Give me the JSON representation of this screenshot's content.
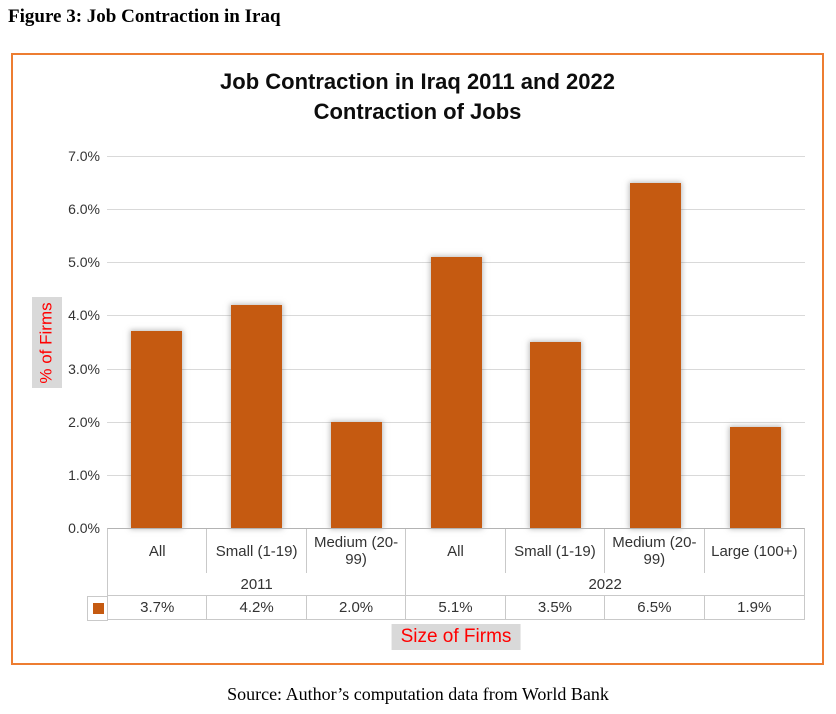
{
  "page": {
    "figure_caption": "Figure 3: Job Contraction in Iraq",
    "source_note": "Source: Author’s computation data from World Bank"
  },
  "colors": {
    "chart_border": "#ED7D31",
    "bar_fill": "#C55A11",
    "gridline": "#D9D9D9",
    "table_line": "#C9C9C9",
    "axis_title_text": "#FF0000",
    "axis_title_bg": "#D9D9D9"
  },
  "chart_data": {
    "type": "bar",
    "title": "Job Contraction in Iraq 2011 and 2022",
    "subtitle": "Contraction of Jobs",
    "xlabel": "Size of Firms",
    "ylabel": "% of Firms",
    "ylim": [
      0,
      7
    ],
    "yticks": [
      "0.0%",
      "1.0%",
      "2.0%",
      "3.0%",
      "4.0%",
      "5.0%",
      "6.0%",
      "7.0%"
    ],
    "grid": true,
    "legend_position": "data-table-left",
    "groups": [
      {
        "label": "2011",
        "categories": [
          "All",
          "Small (1-19)",
          "Medium (20-99)"
        ],
        "values": [
          3.7,
          4.2,
          2.0
        ]
      },
      {
        "label": "2022",
        "categories": [
          "All",
          "Small (1-19)",
          "Medium (20-99)",
          "Large (100+)"
        ],
        "values": [
          5.1,
          3.5,
          6.5,
          1.9
        ]
      }
    ],
    "data_table_values": [
      "3.7%",
      "4.2%",
      "2.0%",
      "5.1%",
      "3.5%",
      "6.5%",
      "1.9%"
    ]
  }
}
